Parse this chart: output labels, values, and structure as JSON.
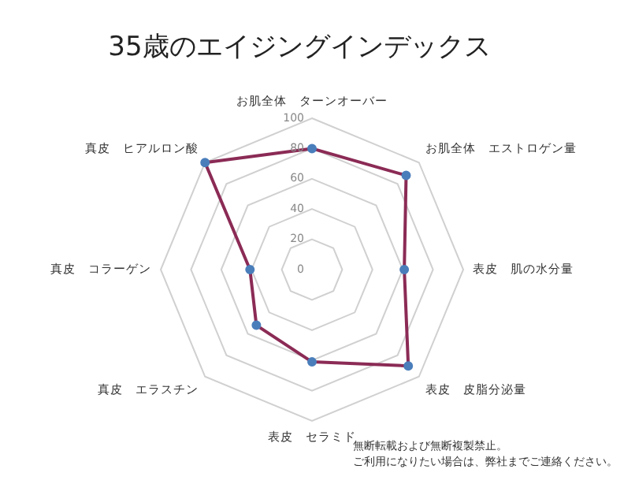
{
  "chart_data": {
    "type": "radar",
    "title": "35歳のエイジングインデックス",
    "categories": [
      "お肌全体　ターンオーバー",
      "お肌全体　エストロゲン量",
      "表皮　肌の水分量",
      "表皮　皮脂分泌量",
      "表皮　セラミド",
      "真皮　エラスチン",
      "真皮　コラーゲン",
      "真皮　ヒアルロン酸"
    ],
    "series": [
      {
        "color": "#8b2b55",
        "values": [
          80,
          88,
          61,
          90,
          61,
          52,
          41,
          100
        ]
      }
    ],
    "ylim": [
      0,
      100
    ],
    "yticks": [
      0,
      20,
      40,
      60,
      80,
      100
    ],
    "grid": true,
    "legend": false,
    "marker": "circle",
    "annotations": [
      "無断転載および無断複製禁止。",
      "ご利用になりたい場合は、弊社までご連絡ください。"
    ]
  }
}
